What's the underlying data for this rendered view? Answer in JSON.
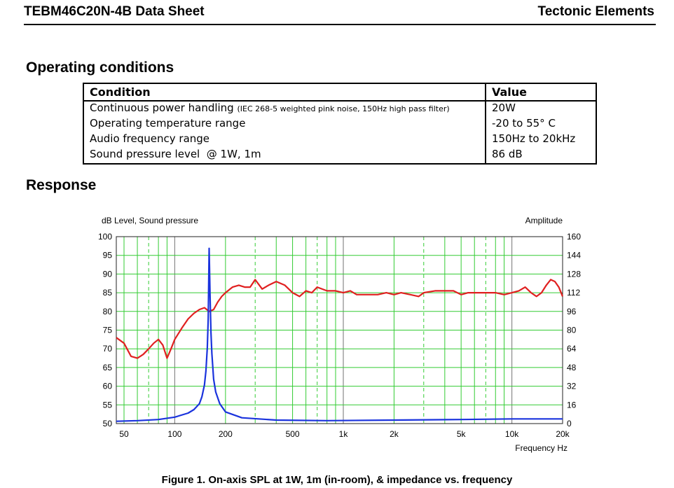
{
  "header": {
    "title": "TEBM46C20N-4B Data Sheet",
    "company": "Tectonic Elements"
  },
  "operating": {
    "heading": "Operating conditions",
    "col_condition": "Condition",
    "col_value": "Value",
    "rows": [
      {
        "condition": "Continuous power handling",
        "note": "(IEC 268-5 weighted pink noise, 150Hz high pass filter)",
        "value": "20W"
      },
      {
        "condition": "Operating temperature range",
        "note": "",
        "value": "-20 to 55° C"
      },
      {
        "condition": "Audio frequency range",
        "note": "",
        "value": "150Hz to 20kHz"
      },
      {
        "condition": "Sound pressure level  @ 1W, 1m",
        "note": "",
        "value": "86 dB"
      }
    ]
  },
  "response": {
    "heading": "Response",
    "caption": "Figure 1. On-axis SPL at 1W, 1m (in-room), & impedance vs. frequency"
  },
  "chart_data": {
    "type": "line",
    "ylabel_left": "dB  Level, Sound pressure",
    "ylabel_right": "Amplitude",
    "xlabel": "Frequency  Hz",
    "x_scale": "log",
    "xlim": [
      45,
      20000
    ],
    "ylim_left": [
      50,
      100
    ],
    "ylim_right": [
      0,
      160
    ],
    "x_ticks": [
      50,
      100,
      200,
      500,
      1000,
      2000,
      5000,
      10000,
      20000
    ],
    "x_tick_labels": [
      "50",
      "100",
      "200",
      "500",
      "1k",
      "2k",
      "5k",
      "10k",
      "20k"
    ],
    "y_ticks_left": [
      "50",
      "55",
      "60",
      "65",
      "70",
      "75",
      "80",
      "85",
      "90",
      "95",
      "100"
    ],
    "y_ticks_right": [
      "0",
      "16",
      "32",
      "48",
      "64",
      "80",
      "96",
      "112",
      "128",
      "144",
      "160"
    ],
    "grid": true,
    "series": [
      {
        "color": "#e02020",
        "axis": "left",
        "x": [
          45,
          50,
          55,
          60,
          65,
          70,
          75,
          80,
          85,
          90,
          95,
          100,
          110,
          120,
          130,
          140,
          150,
          160,
          170,
          180,
          190,
          200,
          220,
          240,
          260,
          280,
          300,
          330,
          360,
          400,
          450,
          500,
          550,
          600,
          650,
          700,
          800,
          900,
          1000,
          1100,
          1200,
          1400,
          1600,
          1800,
          2000,
          2200,
          2500,
          2800,
          3000,
          3500,
          4000,
          4500,
          5000,
          5500,
          6000,
          7000,
          8000,
          9000,
          10000,
          11000,
          12000,
          13000,
          14000,
          15000,
          16000,
          17000,
          18000,
          19000,
          20000
        ],
        "values": [
          73,
          71.5,
          68,
          67.5,
          68.5,
          70,
          71.5,
          72.5,
          71,
          67.5,
          70,
          72.5,
          75.5,
          78,
          79.5,
          80.5,
          81,
          80,
          80.5,
          82.5,
          84,
          85,
          86.5,
          87,
          86.5,
          86.5,
          88.5,
          86,
          87,
          88,
          87,
          85,
          84,
          85.5,
          85,
          86.5,
          85.5,
          85.5,
          85,
          85.5,
          84.5,
          84.5,
          84.5,
          85,
          84.5,
          85,
          84.5,
          84,
          85,
          85.5,
          85.5,
          85.5,
          84.5,
          85,
          85,
          85,
          85,
          84.5,
          85,
          85.5,
          86.5,
          85,
          84,
          85,
          87,
          88.5,
          88,
          86.5,
          84
        ]
      },
      {
        "color": "#1a33dd",
        "axis": "right",
        "x": [
          45,
          60,
          80,
          100,
          120,
          130,
          140,
          145,
          150,
          153,
          156,
          158,
          160,
          162,
          164,
          166,
          170,
          175,
          185,
          200,
          250,
          400,
          800,
          2000,
          5000,
          10000,
          20000
        ],
        "values": [
          2,
          2.5,
          3.5,
          5.5,
          9,
          12,
          17,
          23,
          33,
          45,
          65,
          90,
          150,
          110,
          78,
          60,
          38,
          27,
          17,
          10,
          5,
          3,
          2.5,
          3,
          3.5,
          4,
          4
        ]
      }
    ]
  }
}
